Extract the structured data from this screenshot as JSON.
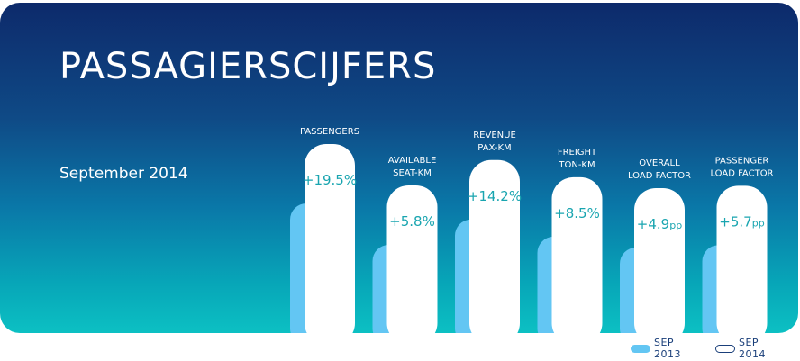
{
  "header": {
    "title": "PASSAGIERSCIJFERS",
    "period": "September 2014"
  },
  "colors": {
    "sep2013_bar": "#63c6f3",
    "sep2014_bar": "#ffffff",
    "value_text": "#19a5b0",
    "label_text": "#ffffff",
    "legend_text": "#1a3f7a"
  },
  "legend": {
    "sep2013": "SEP 2013",
    "sep2014": "SEP 2014"
  },
  "chart_data": {
    "type": "bar",
    "categories": [
      [
        "PASSENGERS"
      ],
      [
        "AVAILABLE",
        "SEAT-KM"
      ],
      [
        "REVENUE",
        "PAX-KM"
      ],
      [
        "FREIGHT",
        "TON-KM"
      ],
      [
        "OVERALL",
        "LOAD FACTOR"
      ],
      [
        "PASSENGER",
        "LOAD FACTOR"
      ]
    ],
    "values": [
      19.5,
      5.8,
      14.2,
      8.5,
      4.9,
      5.7
    ],
    "value_labels": [
      "+19.5%",
      "+5.8%",
      "+14.2%",
      "+8.5%",
      "+4.9pp",
      "+5.7pp"
    ],
    "series": [
      {
        "name": "SEP 2013"
      },
      {
        "name": "SEP 2014"
      }
    ],
    "legend_position": "bottom-right",
    "grid": false
  }
}
